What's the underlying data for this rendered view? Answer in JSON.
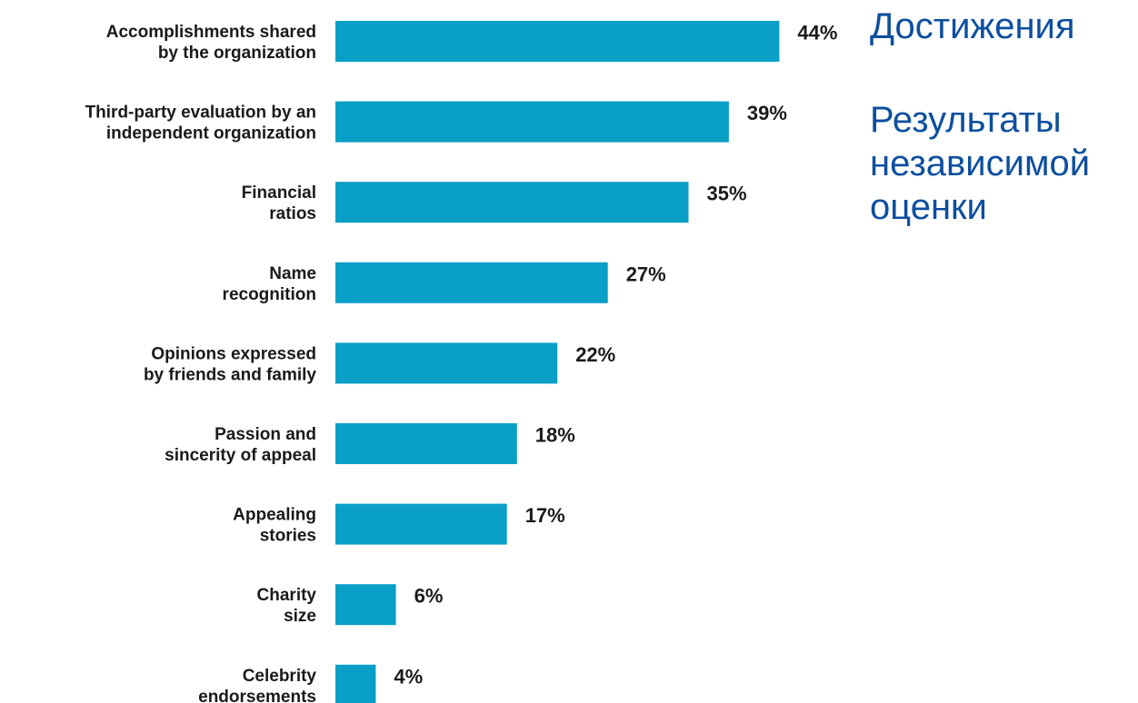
{
  "chart_data": {
    "type": "bar",
    "orientation": "horizontal",
    "categories": [
      [
        "Accomplishments shared",
        "by the organization"
      ],
      [
        "Third-party evaluation by an",
        "independent organization"
      ],
      [
        "Financial",
        "ratios"
      ],
      [
        "Name",
        "recognition"
      ],
      [
        "Opinions expressed",
        "by friends and family"
      ],
      [
        "Passion and",
        "sincerity of appeal"
      ],
      [
        "Appealing",
        "stories"
      ],
      [
        "Charity",
        "size"
      ],
      [
        "Celebrity",
        "endorsements"
      ]
    ],
    "values": [
      44,
      39,
      35,
      27,
      22,
      18,
      17,
      6,
      4
    ],
    "value_labels": [
      "44%",
      "39%",
      "35%",
      "27%",
      "22%",
      "18%",
      "17%",
      "6%",
      "4%"
    ],
    "unit": "%",
    "bar_color": "#0a9fc6",
    "title": "",
    "xlabel": "",
    "ylabel": "",
    "grid": false,
    "legend": false
  },
  "annotations": {
    "achievements": "Достижения",
    "independent_evaluation": "Результаты независимой оценки"
  },
  "colors": {
    "bar": "#0a9fc6",
    "label_text": "#1a1a1a",
    "annotation_text": "#0d4f9e",
    "background": "#ffffff"
  }
}
